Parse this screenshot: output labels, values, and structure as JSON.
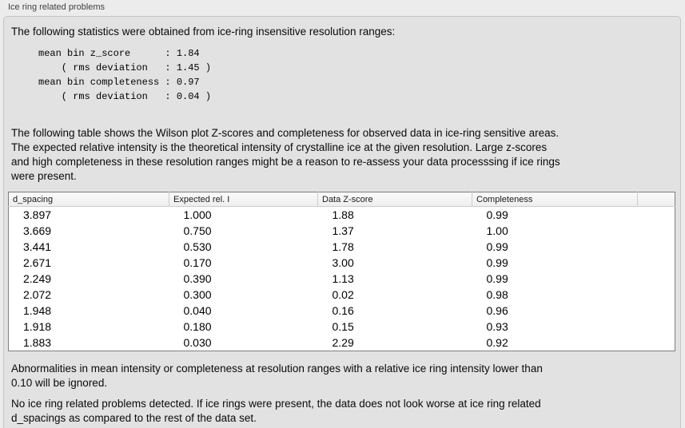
{
  "panel": {
    "title": "Ice ring related problems"
  },
  "stats": {
    "intro": "The following statistics were obtained from ice-ring insensitive resolution ranges:",
    "block": "mean bin z_score      : 1.84\n    ( rms deviation   : 1.45 )\nmean bin completeness : 0.97\n    ( rms deviation   : 0.04 )",
    "mean_bin_z_score": "1.84",
    "z_score_rms_deviation": "1.45",
    "mean_bin_completeness": "0.97",
    "completeness_rms_deviation": "0.04"
  },
  "table_section": {
    "description": "The following table shows the Wilson plot Z-scores and completeness for observed data in ice-ring sensitive areas.\nThe expected relative intensity is the theoretical intensity of crystalline ice at the given resolution. Large z-scores\nand high completeness in these resolution ranges might be a reason to re-assess your data processsing if ice rings\nwere present."
  },
  "table": {
    "columns": [
      "d_spacing",
      "Expected rel. I",
      "Data Z-score",
      "Completeness",
      ""
    ],
    "rows": [
      [
        "3.897",
        "1.000",
        "1.88",
        "0.99"
      ],
      [
        "3.669",
        "0.750",
        "1.37",
        "1.00"
      ],
      [
        "3.441",
        "0.530",
        "1.78",
        "0.99"
      ],
      [
        "2.671",
        "0.170",
        "3.00",
        "0.99"
      ],
      [
        "2.249",
        "0.390",
        "1.13",
        "0.99"
      ],
      [
        "2.072",
        "0.300",
        "0.02",
        "0.98"
      ],
      [
        "1.948",
        "0.040",
        "0.16",
        "0.96"
      ],
      [
        "1.918",
        "0.180",
        "0.15",
        "0.93"
      ],
      [
        "1.883",
        "0.030",
        "2.29",
        "0.92"
      ]
    ]
  },
  "notes": {
    "threshold": "Abnormalities in mean intensity or completeness at resolution ranges with a relative ice ring intensity lower than\n0.10 will be ignored.",
    "conclusion": "No ice ring related problems detected. If ice rings were present, the data does not look worse at ice ring related\nd_spacings as compared to the rest of the data set."
  },
  "colors": {
    "page-bg": "#ececec",
    "box-bg": "#e2e2e2",
    "box-border": "#c5c5c5",
    "label-text": "#3f3f3f",
    "body-text": "#0a0a0a",
    "table-border": "#7f7f7f",
    "table-bg": "#ffffff",
    "header-bg-top": "#fafafa",
    "header-bg-bottom": "#eeeeee",
    "header-divider": "#cccccc"
  }
}
